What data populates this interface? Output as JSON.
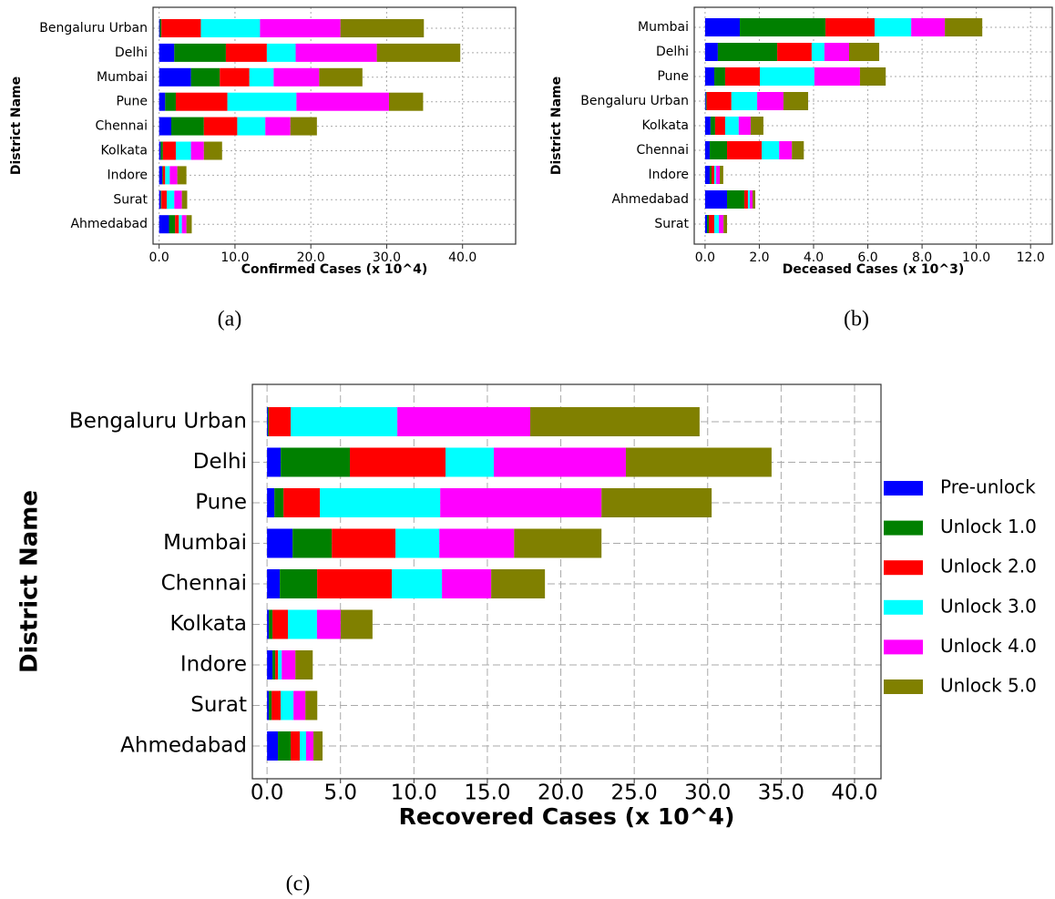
{
  "chart_data": [
    {
      "type": "bar",
      "horizontal": true,
      "stacked": true,
      "caption": "(a)",
      "xlabel": "Confirmed Cases (x 10^4)",
      "ylabel": "District Name",
      "categories": [
        "Bengaluru Urban",
        "Delhi",
        "Mumbai",
        "Pune",
        "Chennai",
        "Kolkata",
        "Indore",
        "Surat",
        "Ahmedabad"
      ],
      "series": [
        {
          "color": "#0000ff",
          "values": [
            0.1,
            2.0,
            4.2,
            0.8,
            1.6,
            0.2,
            0.4,
            0.2,
            1.3
          ]
        },
        {
          "color": "#008000",
          "values": [
            0.2,
            6.8,
            3.8,
            1.4,
            4.3,
            0.3,
            0.1,
            0.1,
            0.8
          ]
        },
        {
          "color": "#ff0000",
          "values": [
            5.2,
            5.4,
            3.9,
            6.8,
            4.4,
            1.7,
            0.3,
            0.7,
            0.5
          ]
        },
        {
          "color": "#00ffff",
          "values": [
            7.8,
            3.8,
            3.2,
            9.1,
            3.7,
            2.0,
            0.6,
            1.0,
            0.4
          ]
        },
        {
          "color": "#ff00ff",
          "values": [
            10.6,
            10.7,
            6.0,
            12.2,
            3.3,
            1.7,
            1.0,
            1.0,
            0.6
          ]
        },
        {
          "color": "#808000",
          "values": [
            11.0,
            11.0,
            5.7,
            4.5,
            3.5,
            2.4,
            1.2,
            0.7,
            0.7
          ]
        }
      ],
      "xlim": [
        -0.8,
        47
      ],
      "xticks": [
        {
          "value": 0,
          "label": "0.0"
        },
        {
          "value": 10,
          "label": "10.0"
        },
        {
          "value": 20,
          "label": "20.0"
        },
        {
          "value": 30,
          "label": "30.0"
        },
        {
          "value": 40,
          "label": "40.0"
        }
      ],
      "grid": true,
      "grid_style": "dotted"
    },
    {
      "type": "bar",
      "horizontal": true,
      "stacked": true,
      "caption": "(b)",
      "xlabel": "Deceased Cases (x 10^3)",
      "ylabel": "District Name",
      "categories": [
        "Mumbai",
        "Delhi",
        "Pune",
        "Bengaluru Urban",
        "Kolkata",
        "Chennai",
        "Indore",
        "Ahmedabad",
        "Surat"
      ],
      "series": [
        {
          "color": "#0000ff",
          "values": [
            1.28,
            0.47,
            0.34,
            0.03,
            0.2,
            0.17,
            0.17,
            0.81,
            0.07
          ]
        },
        {
          "color": "#008000",
          "values": [
            3.16,
            2.19,
            0.4,
            0.03,
            0.17,
            0.64,
            0.07,
            0.64,
            0.07
          ]
        },
        {
          "color": "#ff0000",
          "values": [
            1.81,
            1.27,
            1.28,
            0.91,
            0.37,
            1.28,
            0.1,
            0.13,
            0.2
          ]
        },
        {
          "color": "#00ffff",
          "values": [
            1.35,
            0.47,
            2.01,
            0.95,
            0.5,
            0.64,
            0.07,
            0.07,
            0.17
          ]
        },
        {
          "color": "#ff00ff",
          "values": [
            1.24,
            0.91,
            1.68,
            0.97,
            0.44,
            0.47,
            0.13,
            0.1,
            0.17
          ]
        },
        {
          "color": "#808000",
          "values": [
            1.38,
            1.11,
            0.95,
            0.91,
            0.47,
            0.44,
            0.13,
            0.1,
            0.13
          ]
        }
      ],
      "xlim": [
        -0.4,
        12.8
      ],
      "xticks": [
        {
          "value": 0,
          "label": "0.0"
        },
        {
          "value": 2,
          "label": "2.0"
        },
        {
          "value": 4,
          "label": "4.0"
        },
        {
          "value": 6,
          "label": "6.0"
        },
        {
          "value": 8,
          "label": "8.0"
        },
        {
          "value": 10,
          "label": "10.0"
        },
        {
          "value": 12,
          "label": "12.0"
        }
      ],
      "grid": true,
      "grid_style": "dotted"
    },
    {
      "type": "bar",
      "horizontal": true,
      "stacked": true,
      "caption": "(c)",
      "xlabel": "Recovered Cases (x 10^4)",
      "ylabel": "District Name",
      "categories": [
        "Bengaluru Urban",
        "Delhi",
        "Pune",
        "Mumbai",
        "Chennai",
        "Kolkata",
        "Indore",
        "Surat",
        "Ahmedabad"
      ],
      "series": [
        {
          "name": "Pre-unlock",
          "color": "#0000ff",
          "values": [
            0.06,
            0.93,
            0.5,
            1.74,
            0.87,
            0.12,
            0.37,
            0.12,
            0.74
          ]
        },
        {
          "name": "Unlock 1.0",
          "color": "#008000",
          "values": [
            0.06,
            4.71,
            0.62,
            2.67,
            2.54,
            0.25,
            0.19,
            0.19,
            0.87
          ]
        },
        {
          "name": "Unlock 2.0",
          "color": "#ff0000",
          "values": [
            1.49,
            6.51,
            2.48,
            4.34,
            5.09,
            1.05,
            0.19,
            0.62,
            0.62
          ]
        },
        {
          "name": "Unlock 3.0",
          "color": "#00ffff",
          "values": [
            7.26,
            3.29,
            8.19,
            2.98,
            3.41,
            1.98,
            0.25,
            0.87,
            0.43
          ]
        },
        {
          "name": "Unlock 4.0",
          "color": "#ff00ff",
          "values": [
            9.05,
            8.99,
            10.98,
            5.09,
            3.35,
            1.61,
            0.93,
            0.81,
            0.5
          ]
        },
        {
          "name": "Unlock 5.0",
          "color": "#808000",
          "values": [
            11.53,
            9.92,
            7.5,
            5.95,
            3.66,
            2.17,
            1.18,
            0.81,
            0.62
          ]
        }
      ],
      "xlim": [
        -1.0,
        41.8
      ],
      "xticks": [
        {
          "value": 0,
          "label": "0.0"
        },
        {
          "value": 5,
          "label": "5.0"
        },
        {
          "value": 10,
          "label": "10.0"
        },
        {
          "value": 15,
          "label": "15.0"
        },
        {
          "value": 20,
          "label": "20.0"
        },
        {
          "value": 25,
          "label": "25.0"
        },
        {
          "value": 30,
          "label": "30.0"
        },
        {
          "value": 35,
          "label": "35.0"
        },
        {
          "value": 40,
          "label": "40.0"
        }
      ],
      "grid": true,
      "grid_style": "dashed",
      "legend": "right"
    }
  ]
}
